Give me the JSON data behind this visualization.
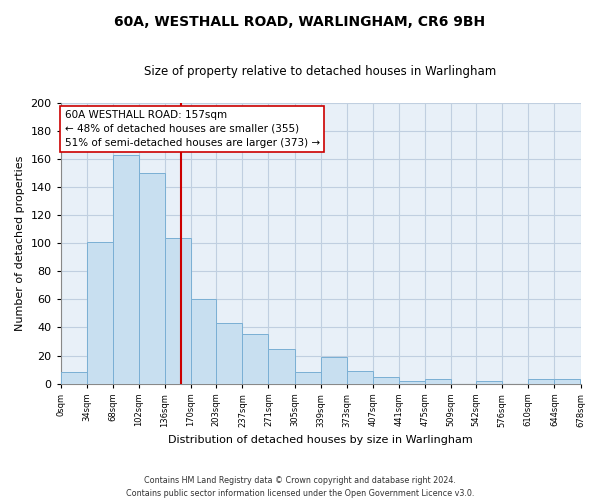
{
  "title": "60A, WESTHALL ROAD, WARLINGHAM, CR6 9BH",
  "subtitle": "Size of property relative to detached houses in Warlingham",
  "xlabel": "Distribution of detached houses by size in Warlingham",
  "ylabel": "Number of detached properties",
  "bar_color": "#c8dff0",
  "bar_edge_color": "#7aafd4",
  "bin_edges": [
    0,
    34,
    68,
    102,
    136,
    170,
    203,
    237,
    271,
    305,
    339,
    373,
    407,
    441,
    475,
    509,
    542,
    576,
    610,
    644,
    678
  ],
  "bin_labels": [
    "0sqm",
    "34sqm",
    "68sqm",
    "102sqm",
    "136sqm",
    "170sqm",
    "203sqm",
    "237sqm",
    "271sqm",
    "305sqm",
    "339sqm",
    "373sqm",
    "407sqm",
    "441sqm",
    "475sqm",
    "509sqm",
    "542sqm",
    "576sqm",
    "610sqm",
    "644sqm",
    "678sqm"
  ],
  "counts": [
    8,
    101,
    163,
    150,
    104,
    60,
    43,
    35,
    25,
    8,
    19,
    9,
    5,
    2,
    3,
    0,
    2,
    0,
    3,
    3
  ],
  "vline_x": 157,
  "ylim": [
    0,
    200
  ],
  "yticks": [
    0,
    20,
    40,
    60,
    80,
    100,
    120,
    140,
    160,
    180,
    200
  ],
  "annotation_title": "60A WESTHALL ROAD: 157sqm",
  "annotation_line1": "← 48% of detached houses are smaller (355)",
  "annotation_line2": "51% of semi-detached houses are larger (373) →",
  "footer_line1": "Contains HM Land Registry data © Crown copyright and database right 2024.",
  "footer_line2": "Contains public sector information licensed under the Open Government Licence v3.0.",
  "vline_color": "#cc0000",
  "annotation_box_color": "#ffffff",
  "annotation_box_edge": "#cc0000",
  "background_color": "#ffffff",
  "grid_color": "#c0cfe0"
}
